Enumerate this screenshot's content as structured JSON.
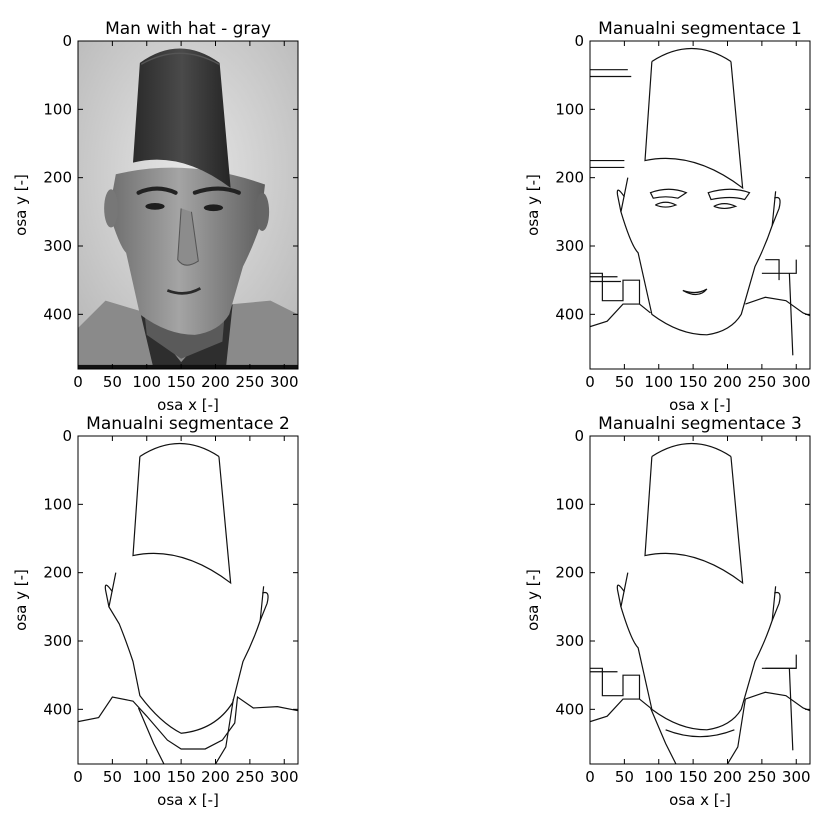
{
  "figure": {
    "panels": [
      {
        "title": "Man with hat - gray"
      },
      {
        "title": "Manualni segmentace 1"
      },
      {
        "title": "Manualni segmentace 2"
      },
      {
        "title": "Manualni segmentace 3"
      }
    ]
  },
  "chart_data": [
    {
      "type": "image",
      "title": "Man with hat - gray",
      "xlabel": "osa x [-]",
      "ylabel": "osa y [-]",
      "xlim": [
        0,
        320
      ],
      "ylim": [
        480,
        0
      ],
      "xticks": [
        0,
        50,
        100,
        150,
        200,
        250,
        300
      ],
      "yticks": [
        0,
        100,
        200,
        300,
        400
      ],
      "colormap": "gray",
      "grid": false
    },
    {
      "type": "image",
      "title": "Manualni segmentace 1",
      "xlabel": "osa x [-]",
      "ylabel": "osa y [-]",
      "xlim": [
        0,
        320
      ],
      "ylim": [
        480,
        0
      ],
      "xticks": [
        0,
        50,
        100,
        150,
        200,
        250,
        300
      ],
      "yticks": [
        0,
        100,
        200,
        300,
        400
      ],
      "colormap": "binary",
      "grid": false
    },
    {
      "type": "image",
      "title": "Manualni segmentace 2",
      "xlabel": "osa x [-]",
      "ylabel": "osa y [-]",
      "xlim": [
        0,
        320
      ],
      "ylim": [
        480,
        0
      ],
      "xticks": [
        0,
        50,
        100,
        150,
        200,
        250,
        300
      ],
      "yticks": [
        0,
        100,
        200,
        300,
        400
      ],
      "colormap": "binary",
      "grid": false
    },
    {
      "type": "image",
      "title": "Manualni segmentace 3",
      "xlabel": "osa x [-]",
      "ylabel": "osa y [-]",
      "xlim": [
        0,
        320
      ],
      "ylim": [
        480,
        0
      ],
      "xticks": [
        0,
        50,
        100,
        150,
        200,
        250,
        300
      ],
      "yticks": [
        0,
        100,
        200,
        300,
        400
      ],
      "colormap": "binary",
      "grid": false
    }
  ]
}
